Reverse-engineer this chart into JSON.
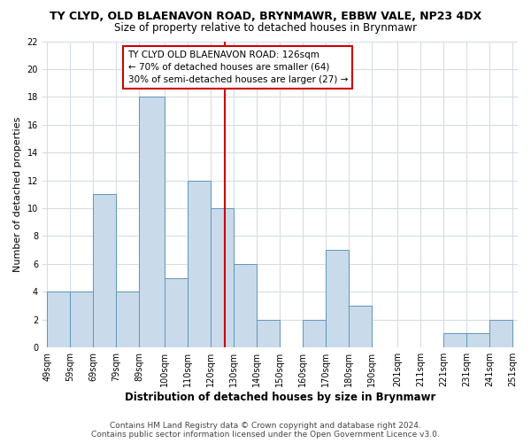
{
  "title": "TY CLYD, OLD BLAENAVON ROAD, BRYNMAWR, EBBW VALE, NP23 4DX",
  "subtitle": "Size of property relative to detached houses in Brynmawr",
  "xlabel": "Distribution of detached houses by size in Brynmawr",
  "ylabel": "Number of detached properties",
  "bin_edges": [
    49,
    59,
    69,
    79,
    89,
    100,
    110,
    120,
    130,
    140,
    150,
    160,
    170,
    180,
    190,
    201,
    211,
    221,
    231,
    241,
    251
  ],
  "counts": [
    4,
    4,
    11,
    4,
    18,
    5,
    12,
    10,
    6,
    2,
    0,
    2,
    7,
    3,
    0,
    0,
    0,
    1,
    1,
    2
  ],
  "bar_color": "#c9daea",
  "bar_edge_color": "#6096b8",
  "grid_color": "#d4dde5",
  "red_line_x": 126,
  "annotation_title": "TY CLYD OLD BLAENAVON ROAD: 126sqm",
  "annotation_line1": "← 70% of detached houses are smaller (64)",
  "annotation_line2": "30% of semi-detached houses are larger (27) →",
  "annotation_box_color": "#ffffff",
  "annotation_border_color": "#cc0000",
  "red_line_color": "#cc0000",
  "ylim": [
    0,
    22
  ],
  "yticks": [
    0,
    2,
    4,
    6,
    8,
    10,
    12,
    14,
    16,
    18,
    20,
    22
  ],
  "footer_line1": "Contains HM Land Registry data © Crown copyright and database right 2024.",
  "footer_line2": "Contains public sector information licensed under the Open Government Licence v3.0.",
  "background_color": "#ffffff",
  "title_fontsize": 9,
  "subtitle_fontsize": 8.5,
  "xlabel_fontsize": 8.5,
  "ylabel_fontsize": 8,
  "tick_fontsize": 7,
  "annotation_fontsize": 7.5,
  "footer_fontsize": 6.5
}
